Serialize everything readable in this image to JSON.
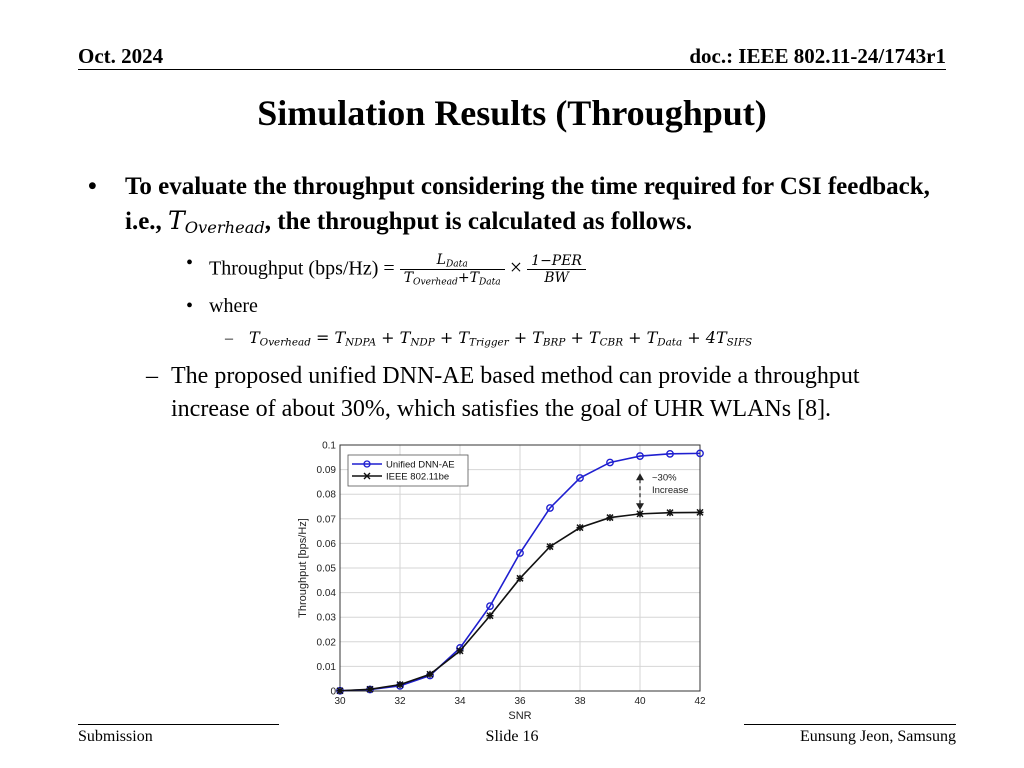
{
  "header": {
    "date": "Oct. 2024",
    "doc": "doc.: IEEE 802.11-24/1743r1"
  },
  "title": "Simulation Results (Throughput)",
  "bullet1": {
    "marker": "•",
    "text_a": "To evaluate the throughput considering the time required for CSI feedback, i.e., ",
    "math": "T",
    "math_sub": "Overhead",
    "text_b": ", the throughput is calculated as follows."
  },
  "formula": {
    "marker": "•",
    "label": "Throughput (bps/Hz) = ",
    "num1": "L",
    "num1_sub": "Data",
    "den1_a": "T",
    "den1_a_sub": "Overhead",
    "den1_plus": "+",
    "den1_b": "T",
    "den1_b_sub": "Data",
    "times": "×",
    "num2": "1−PER",
    "den2": "BW"
  },
  "where": {
    "marker": "•",
    "text": "where"
  },
  "overhead_eq": {
    "marker": "–",
    "terms": [
      {
        "v": "T",
        "s": "Overhead",
        "op": " = "
      },
      {
        "v": "T",
        "s": "NDPA",
        "op": " + "
      },
      {
        "v": "T",
        "s": "NDP",
        "op": " + "
      },
      {
        "v": "T",
        "s": "Trigger",
        "op": " + "
      },
      {
        "v": "T",
        "s": "BRP",
        "op": " + "
      },
      {
        "v": "T",
        "s": "CBR",
        "op": " + "
      },
      {
        "v": "T",
        "s": "Data",
        "op": " + "
      },
      {
        "v": "4T",
        "s": "SIFS",
        "op": ""
      }
    ]
  },
  "conclusion": {
    "marker": "–",
    "text": "The proposed unified DNN-AE based method can provide a throughput increase of about 30%, which satisfies the goal of UHR WLANs [8]."
  },
  "chart_data": {
    "type": "line",
    "xlabel": "SNR",
    "ylabel": "Throughput [bps/Hz]",
    "xlim": [
      30,
      42
    ],
    "ylim": [
      0,
      0.1
    ],
    "xticks": [
      30,
      32,
      34,
      36,
      38,
      40,
      42
    ],
    "yticks": [
      0,
      0.01,
      0.02,
      0.03,
      0.04,
      0.05,
      0.06,
      0.07,
      0.08,
      0.09,
      0.1
    ],
    "ytick_labels": [
      "0",
      "0.01",
      "0.02",
      "0.03",
      "0.04",
      "0.05",
      "0.06",
      "0.07",
      "0.08",
      "0.09",
      "0.1"
    ],
    "grid": true,
    "legend": "top-left",
    "x": [
      30,
      31,
      32,
      33,
      34,
      35,
      36,
      37,
      38,
      39,
      40,
      41,
      42
    ],
    "series": [
      {
        "name": "Unified DNN-AE",
        "color": "#1f1fd0",
        "marker": "circle",
        "values": [
          0.0001,
          0.0006,
          0.0021,
          0.0063,
          0.0175,
          0.0345,
          0.0561,
          0.0744,
          0.0866,
          0.0929,
          0.0955,
          0.0964,
          0.0966
        ]
      },
      {
        "name": "IEEE 802.11be",
        "color": "#111111",
        "marker": "star",
        "values": [
          0.0001,
          0.0007,
          0.0026,
          0.0068,
          0.0163,
          0.0306,
          0.0458,
          0.0587,
          0.0664,
          0.0705,
          0.072,
          0.0725,
          0.0726
        ]
      }
    ],
    "annotation": {
      "text_line1": "~30%",
      "text_line2": "Increase",
      "x": 40,
      "y_from": 0.0735,
      "y_to": 0.0885
    }
  },
  "footer": {
    "left": "Submission",
    "center": "Slide 16",
    "right": "Eunsung Jeon, Samsung"
  }
}
